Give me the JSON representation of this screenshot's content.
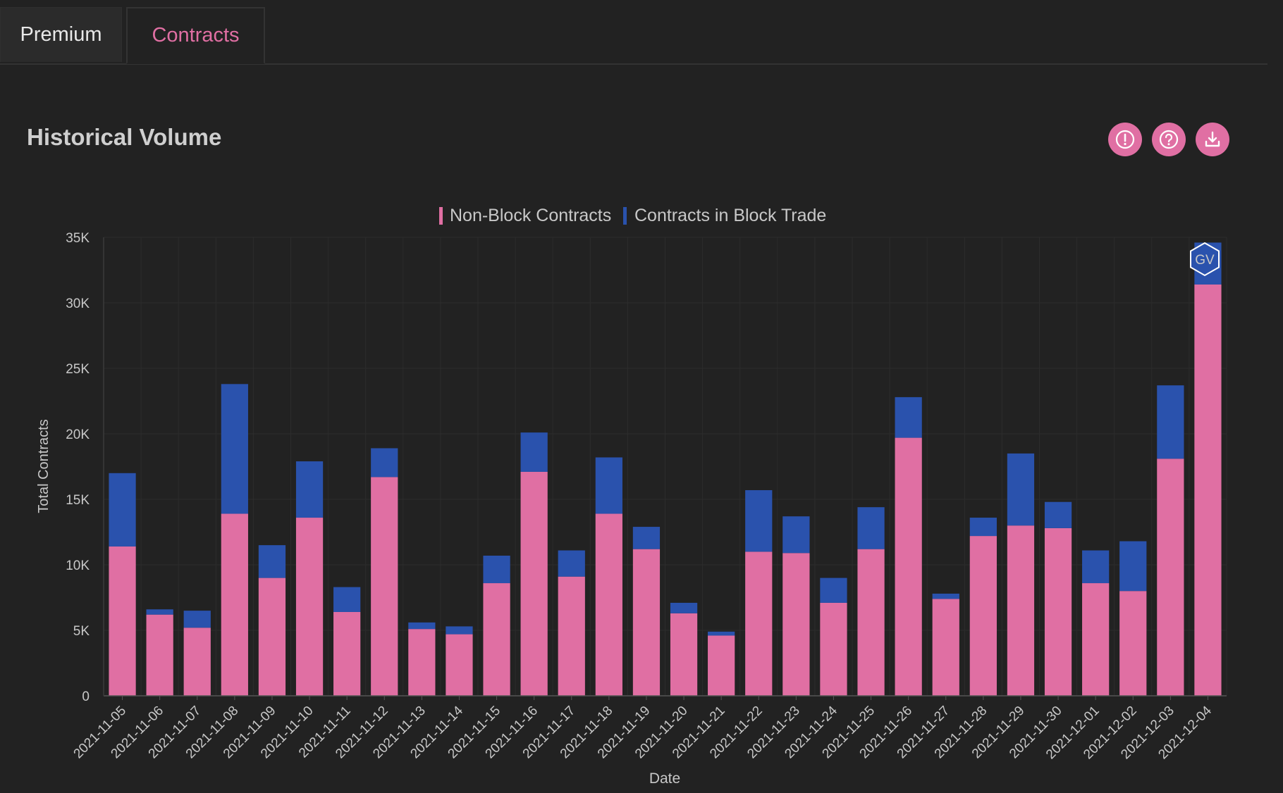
{
  "tabs": [
    {
      "label": "Premium",
      "active": false
    },
    {
      "label": "Contracts",
      "active": true
    }
  ],
  "section": {
    "title": "Historical Volume",
    "buttons": [
      {
        "icon": "alert-circle-icon"
      },
      {
        "icon": "help-circle-icon"
      },
      {
        "icon": "download-icon"
      }
    ]
  },
  "colors": {
    "accent": "#e06fa3",
    "non_block": "#e06fa3",
    "block": "#2a52ad",
    "background": "#222222",
    "grid": "#2c2c2c"
  },
  "chart_data": {
    "type": "bar",
    "stacked": true,
    "xlabel": "Date",
    "ylabel": "Total Contracts",
    "ylim": [
      0,
      35000
    ],
    "yticks": [
      0,
      5000,
      10000,
      15000,
      20000,
      25000,
      30000,
      35000
    ],
    "ytick_labels": [
      "0",
      "5K",
      "10K",
      "15K",
      "20K",
      "25K",
      "30K",
      "35K"
    ],
    "legend_position": "top-center",
    "watermark": "GV",
    "categories": [
      "2021-11-05",
      "2021-11-06",
      "2021-11-07",
      "2021-11-08",
      "2021-11-09",
      "2021-11-10",
      "2021-11-11",
      "2021-11-12",
      "2021-11-13",
      "2021-11-14",
      "2021-11-15",
      "2021-11-16",
      "2021-11-17",
      "2021-11-18",
      "2021-11-19",
      "2021-11-20",
      "2021-11-21",
      "2021-11-22",
      "2021-11-23",
      "2021-11-24",
      "2021-11-25",
      "2021-11-26",
      "2021-11-27",
      "2021-11-28",
      "2021-11-29",
      "2021-11-30",
      "2021-12-01",
      "2021-12-02",
      "2021-12-03",
      "2021-12-04"
    ],
    "series": [
      {
        "name": "Non-Block Contracts",
        "color": "#e06fa3",
        "values": [
          11400,
          6200,
          5200,
          13900,
          9000,
          13600,
          6400,
          16700,
          5100,
          4700,
          8600,
          17100,
          9100,
          13900,
          11200,
          6300,
          4600,
          11000,
          10900,
          7100,
          11200,
          19700,
          7400,
          12200,
          13000,
          12800,
          8600,
          8000,
          18100,
          31400
        ]
      },
      {
        "name": "Contracts in Block Trade",
        "color": "#2a52ad",
        "values": [
          5600,
          400,
          1300,
          9900,
          2500,
          4300,
          1900,
          2200,
          500,
          600,
          2100,
          3000,
          2000,
          4300,
          1700,
          800,
          300,
          4700,
          2800,
          1900,
          3200,
          3100,
          400,
          1400,
          5500,
          2000,
          2500,
          3800,
          5600,
          3200
        ]
      }
    ]
  }
}
